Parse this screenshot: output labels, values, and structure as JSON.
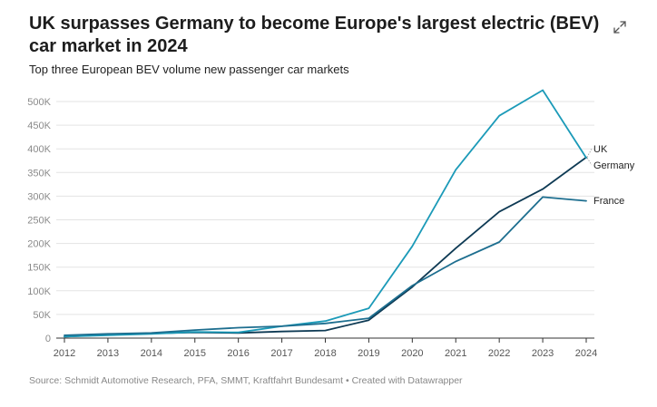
{
  "header": {
    "title": "UK surpasses Germany to become Europe's largest electric (BEV) car market in 2024",
    "subtitle": "Top three European BEV volume new passenger car markets"
  },
  "footer": {
    "source": "Source: Schmidt Automotive Research, PFA, SMMT, Kraftfahrt Bundesamt • Created with Datawrapper"
  },
  "icons": {
    "expand": "expand-icon"
  },
  "chart_data": {
    "type": "line",
    "x": [
      2012,
      2013,
      2014,
      2015,
      2016,
      2017,
      2018,
      2019,
      2020,
      2021,
      2022,
      2023,
      2024
    ],
    "x_tick_labels": [
      "2012",
      "2013",
      "2014",
      "2015",
      "2016",
      "2017",
      "2018",
      "2019",
      "2020",
      "2021",
      "2022",
      "2023",
      "2024"
    ],
    "ylim": [
      0,
      500000
    ],
    "y_ticks": [
      0,
      50000,
      100000,
      150000,
      200000,
      250000,
      300000,
      350000,
      400000,
      450000,
      500000
    ],
    "y_tick_labels": [
      "0",
      "50K",
      "100K",
      "150K",
      "200K",
      "250K",
      "300K",
      "350K",
      "400K",
      "450K",
      "500K"
    ],
    "grid": true,
    "legend": "inline-right",
    "series": [
      {
        "name": "UK",
        "color": "#0e3a54",
        "values": [
          3000,
          7000,
          10000,
          12000,
          11000,
          14000,
          16000,
          38000,
          108000,
          190000,
          267000,
          315000,
          382000
        ]
      },
      {
        "name": "Germany",
        "color": "#1b9ab8",
        "values": [
          3000,
          6000,
          9000,
          13000,
          12000,
          25000,
          36000,
          63000,
          194000,
          356000,
          470000,
          524000,
          381000
        ]
      },
      {
        "name": "France",
        "color": "#1d6e8f",
        "values": [
          6000,
          9000,
          11000,
          17000,
          22000,
          25000,
          31000,
          42000,
          111000,
          162000,
          203000,
          298000,
          290000
        ]
      }
    ]
  }
}
